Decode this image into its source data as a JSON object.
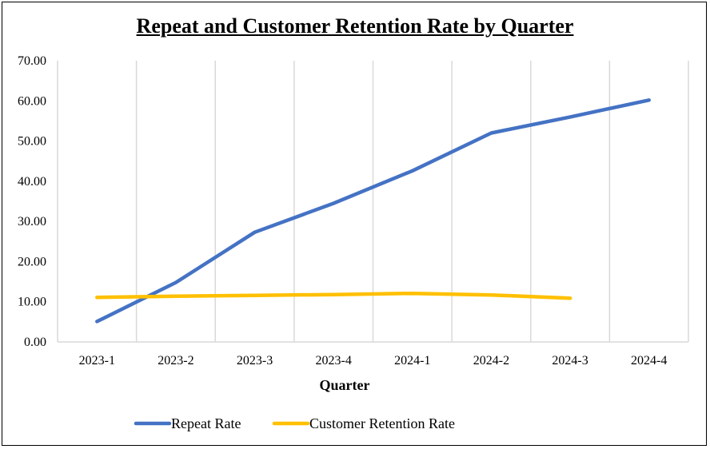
{
  "chart_data": {
    "type": "line",
    "title": "Repeat and Customer Retention Rate by Quarter",
    "xlabel": "Quarter",
    "ylabel": "",
    "categories": [
      "2023-1",
      "2023-2",
      "2023-3",
      "2023-4",
      "2024-1",
      "2024-2",
      "2024-3",
      "2024-4"
    ],
    "ylim": [
      0,
      70
    ],
    "yticks": [
      "0.00",
      "10.00",
      "20.00",
      "30.00",
      "40.00",
      "50.00",
      "60.00",
      "70.00"
    ],
    "grid": "vertical",
    "legend": "bottom",
    "series": [
      {
        "name": "Repeat Rate",
        "color": "#4472C4",
        "values": [
          5.1,
          14.8,
          27.3,
          34.5,
          42.6,
          52.0,
          56.0,
          60.2
        ]
      },
      {
        "name": "Customer Retention Rate",
        "color": "#FFC000",
        "values": [
          11.1,
          11.4,
          11.6,
          11.8,
          12.1,
          11.7,
          10.9,
          null
        ]
      }
    ]
  }
}
